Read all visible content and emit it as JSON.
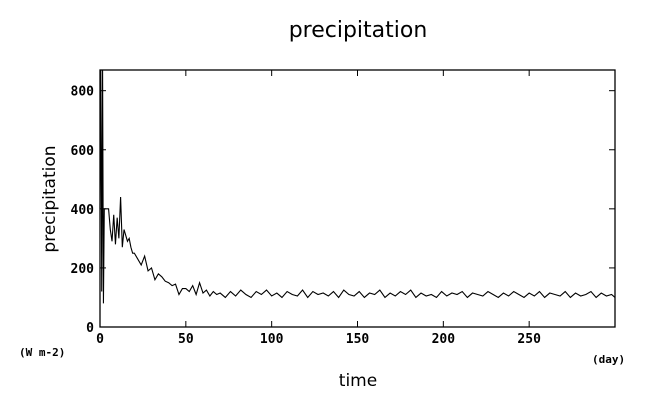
{
  "chart_data": {
    "type": "line",
    "title": "precipitation",
    "xlabel": "time",
    "ylabel": "precipitation",
    "x_unit": "(day)",
    "y_unit": "(W m-2)",
    "xlim": [
      0,
      300
    ],
    "ylim": [
      0,
      870
    ],
    "x_ticks": [
      0,
      50,
      100,
      150,
      200,
      250
    ],
    "y_ticks": [
      0,
      200,
      400,
      600,
      800
    ],
    "x_tick_labels": [
      "0",
      "50",
      "100",
      "150",
      "200",
      "250"
    ],
    "y_tick_labels": [
      "0",
      "200",
      "400",
      "600",
      "800"
    ],
    "grid": false,
    "legend": "none",
    "line_color": "#000000",
    "series": [
      {
        "x": [
          0,
          0.5,
          1,
          1.5,
          2,
          2.5,
          3,
          3.5,
          4,
          5,
          6,
          7,
          8,
          9,
          10,
          11,
          12,
          13,
          14,
          15,
          16,
          17,
          18,
          19,
          20,
          22,
          24,
          26,
          28,
          30,
          32,
          34,
          36,
          38,
          40,
          42,
          44,
          46,
          48,
          50,
          52,
          54,
          56,
          58,
          60,
          62,
          64,
          66,
          68,
          70,
          73,
          76,
          79,
          82,
          85,
          88,
          91,
          94,
          97,
          100,
          103,
          106,
          109,
          112,
          115,
          118,
          121,
          124,
          127,
          130,
          133,
          136,
          139,
          142,
          145,
          148,
          151,
          154,
          157,
          160,
          163,
          166,
          169,
          172,
          175,
          178,
          181,
          184,
          187,
          190,
          193,
          196,
          199,
          202,
          205,
          208,
          211,
          214,
          217,
          220,
          223,
          226,
          229,
          232,
          235,
          238,
          241,
          244,
          247,
          250,
          253,
          256,
          259,
          262,
          265,
          268,
          271,
          274,
          277,
          280,
          283,
          286,
          289,
          292,
          295,
          298,
          300
        ],
        "values": [
          400,
          870,
          120,
          870,
          80,
          400,
          400,
          400,
          400,
          400,
          330,
          290,
          380,
          280,
          370,
          300,
          440,
          270,
          330,
          310,
          290,
          300,
          270,
          250,
          250,
          230,
          210,
          240,
          190,
          200,
          160,
          180,
          170,
          155,
          150,
          140,
          145,
          110,
          130,
          130,
          120,
          140,
          110,
          150,
          115,
          125,
          105,
          120,
          110,
          115,
          100,
          120,
          105,
          125,
          110,
          100,
          120,
          110,
          125,
          105,
          115,
          100,
          120,
          110,
          105,
          125,
          100,
          120,
          110,
          115,
          105,
          120,
          100,
          125,
          110,
          105,
          120,
          100,
          115,
          110,
          125,
          100,
          115,
          105,
          120,
          110,
          125,
          100,
          115,
          105,
          110,
          100,
          120,
          105,
          115,
          110,
          120,
          100,
          115,
          110,
          105,
          120,
          110,
          100,
          115,
          105,
          120,
          110,
          100,
          115,
          105,
          120,
          100,
          115,
          110,
          105,
          120,
          100,
          115,
          105,
          110,
          120,
          100,
          115,
          105,
          110,
          100
        ]
      }
    ]
  }
}
